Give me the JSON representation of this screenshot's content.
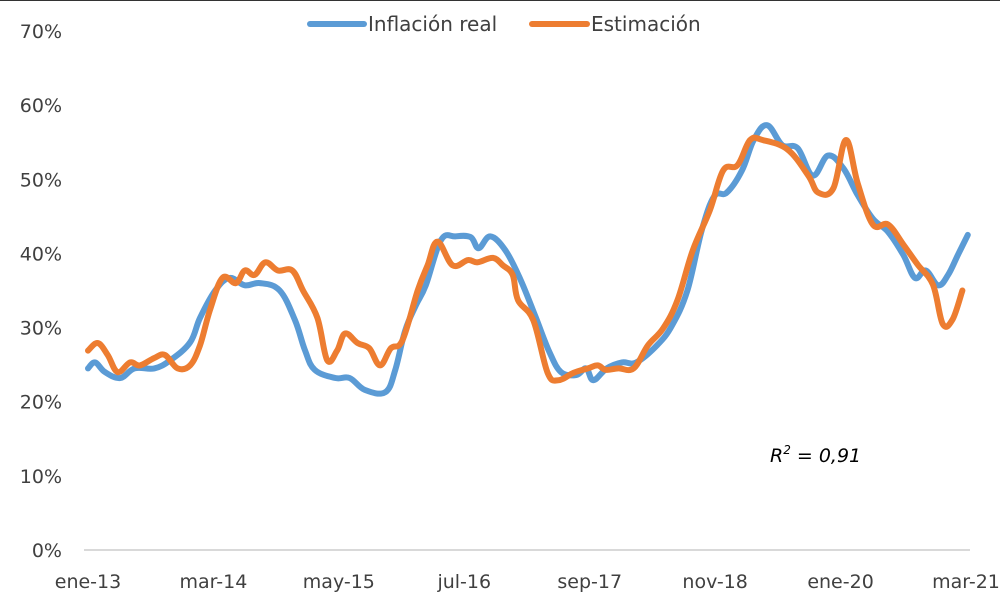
{
  "chart_data": {
    "type": "line",
    "title": "",
    "xlabel": "",
    "ylabel": "",
    "ylim": [
      0,
      70
    ],
    "y_ticks": [
      "0%",
      "10%",
      "20%",
      "30%",
      "40%",
      "50%",
      "60%",
      "70%"
    ],
    "y_tick_values": [
      0,
      10,
      20,
      30,
      40,
      50,
      60,
      70
    ],
    "x_ticks": [
      "ene-13",
      "mar-14",
      "may-15",
      "jul-16",
      "sep-17",
      "nov-18",
      "ene-20",
      "mar-21"
    ],
    "x_tick_months": [
      0,
      14,
      28,
      42,
      56,
      70,
      84,
      98
    ],
    "x_unit": "months since ene-13",
    "xlim": [
      0,
      98
    ],
    "grid": false,
    "legend_position": "top-center",
    "annotation": {
      "label": "R",
      "sup": "2",
      "rest": " = 0,91"
    },
    "series": [
      {
        "name": "Inflación real",
        "color": "#5B9BD5",
        "points": [
          [
            0,
            24.5
          ],
          [
            0.8,
            25.3
          ],
          [
            1.9,
            24
          ],
          [
            3.6,
            23.2
          ],
          [
            5.2,
            24.5
          ],
          [
            7.4,
            24.5
          ],
          [
            9.2,
            25.6
          ],
          [
            11.4,
            28
          ],
          [
            12.5,
            31.3
          ],
          [
            14.2,
            35
          ],
          [
            15.8,
            36.7
          ],
          [
            17.5,
            35.7
          ],
          [
            19.2,
            36
          ],
          [
            21.4,
            35
          ],
          [
            23.1,
            31
          ],
          [
            24.2,
            27
          ],
          [
            25.3,
            24.3
          ],
          [
            27.6,
            23.2
          ],
          [
            29.2,
            23.2
          ],
          [
            30.9,
            21.6
          ],
          [
            33.2,
            21.3
          ],
          [
            34.3,
            24.3
          ],
          [
            35.4,
            29.6
          ],
          [
            36.6,
            33
          ],
          [
            37.7,
            35.7
          ],
          [
            39.4,
            41.8
          ],
          [
            41,
            42.3
          ],
          [
            42.7,
            42.2
          ],
          [
            43.6,
            40.7
          ],
          [
            44.9,
            42.3
          ],
          [
            46.6,
            40.4
          ],
          [
            48.3,
            36.4
          ],
          [
            50,
            31.3
          ],
          [
            51.5,
            26.7
          ],
          [
            52.8,
            24
          ],
          [
            54.5,
            23.6
          ],
          [
            55.6,
            24.5
          ],
          [
            56.4,
            22.9
          ],
          [
            57.9,
            24.5
          ],
          [
            59.6,
            25.3
          ],
          [
            61.2,
            25.3
          ],
          [
            63.5,
            27.6
          ],
          [
            65.2,
            30.3
          ],
          [
            66.9,
            35
          ],
          [
            68.5,
            43.1
          ],
          [
            69.9,
            47.7
          ],
          [
            71.3,
            48.2
          ],
          [
            73,
            51.2
          ],
          [
            74.3,
            55.3
          ],
          [
            75.8,
            57.3
          ],
          [
            77.5,
            54.6
          ],
          [
            79.2,
            54.2
          ],
          [
            80.9,
            50.5
          ],
          [
            82.6,
            53.2
          ],
          [
            84.3,
            51.5
          ],
          [
            85.9,
            47.9
          ],
          [
            87.6,
            44.7
          ],
          [
            89.3,
            42.9
          ],
          [
            91,
            39.8
          ],
          [
            92.3,
            36.7
          ],
          [
            93.5,
            37.7
          ],
          [
            94.9,
            35.7
          ],
          [
            96,
            37.1
          ],
          [
            97.1,
            39.8
          ],
          [
            98.2,
            42.5
          ]
        ]
      },
      {
        "name": "Estimación",
        "color": "#ED7D31",
        "points": [
          [
            0,
            26.9
          ],
          [
            1.1,
            27.9
          ],
          [
            2.2,
            26.3
          ],
          [
            3.3,
            24
          ],
          [
            4.7,
            25.3
          ],
          [
            5.8,
            24.9
          ],
          [
            7.4,
            25.9
          ],
          [
            8.6,
            26.3
          ],
          [
            10,
            24.5
          ],
          [
            11.4,
            24.9
          ],
          [
            12.5,
            27.6
          ],
          [
            13.6,
            32.3
          ],
          [
            15,
            36.7
          ],
          [
            16.5,
            36
          ],
          [
            17.5,
            37.7
          ],
          [
            18.6,
            37.1
          ],
          [
            19.8,
            38.8
          ],
          [
            21.2,
            37.7
          ],
          [
            22.8,
            37.7
          ],
          [
            24,
            35
          ],
          [
            25.6,
            31.3
          ],
          [
            26.7,
            25.6
          ],
          [
            27.8,
            26.9
          ],
          [
            28.7,
            29.2
          ],
          [
            30.1,
            27.9
          ],
          [
            31.4,
            27.2
          ],
          [
            32.6,
            24.9
          ],
          [
            33.8,
            27.2
          ],
          [
            35.1,
            28.3
          ],
          [
            36.8,
            35
          ],
          [
            37.9,
            38.4
          ],
          [
            39,
            41.6
          ],
          [
            40.7,
            38.4
          ],
          [
            42.4,
            39.1
          ],
          [
            43.5,
            38.8
          ],
          [
            45.2,
            39.4
          ],
          [
            46.3,
            38.4
          ],
          [
            47.4,
            37.1
          ],
          [
            48,
            33.7
          ],
          [
            49.7,
            31
          ],
          [
            51.3,
            23.9
          ],
          [
            52.5,
            22.9
          ],
          [
            54.2,
            23.9
          ],
          [
            55.8,
            24.5
          ],
          [
            56.9,
            24.9
          ],
          [
            57.8,
            24.3
          ],
          [
            59.2,
            24.5
          ],
          [
            60.9,
            24.5
          ],
          [
            62.5,
            27.6
          ],
          [
            64.2,
            29.9
          ],
          [
            65.8,
            33.7
          ],
          [
            67.5,
            40.4
          ],
          [
            69.4,
            45.8
          ],
          [
            70.9,
            51.2
          ],
          [
            72.5,
            51.9
          ],
          [
            73.9,
            55.3
          ],
          [
            75.3,
            55.3
          ],
          [
            78.1,
            54
          ],
          [
            80.4,
            50.5
          ],
          [
            81.5,
            48.2
          ],
          [
            83.2,
            48.8
          ],
          [
            84.6,
            55.3
          ],
          [
            85.9,
            49.5
          ],
          [
            87.6,
            43.9
          ],
          [
            89.3,
            43.9
          ],
          [
            91,
            41.2
          ],
          [
            92.6,
            38.5
          ],
          [
            94.3,
            35.8
          ],
          [
            95.4,
            30.5
          ],
          [
            96.5,
            31.1
          ],
          [
            97.6,
            35
          ]
        ]
      }
    ]
  }
}
